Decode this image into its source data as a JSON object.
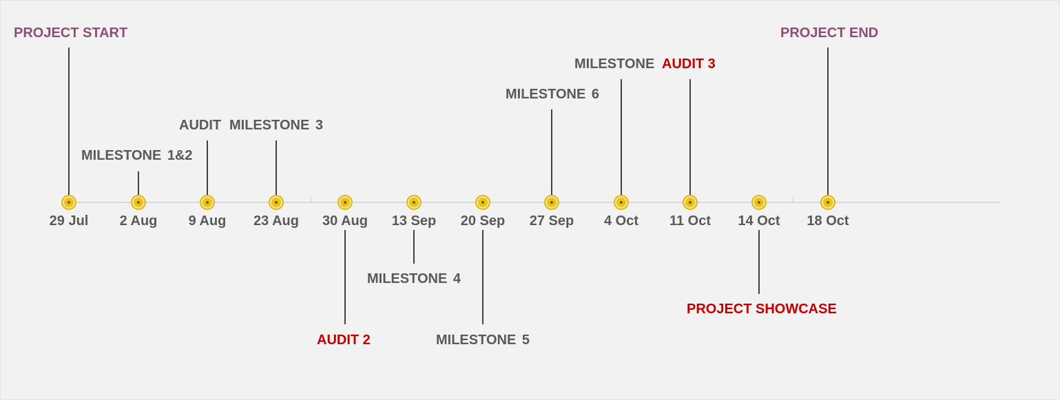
{
  "timeline": {
    "dates": [
      "29 Jul",
      "2 Aug",
      "9 Aug",
      "23 Aug",
      "30 Aug",
      "13 Sep",
      "20 Sep",
      "27 Sep",
      "4 Oct",
      "11 Oct",
      "14 Oct",
      "18 Oct"
    ],
    "labels": {
      "project_start": "PROJECT START",
      "milestone_1_2": "MILESTONE 1&2",
      "audit": "AUDIT",
      "milestone_3": "MILESTONE 3",
      "audit_2": "AUDIT 2",
      "milestone_4": "MILESTONE 4",
      "milestone_5": "MILESTONE 5",
      "milestone_6": "MILESTONE 6",
      "milestone": "MILESTONE",
      "audit_3": "AUDIT 3",
      "project_showcase": "PROJECT SHOWCASE",
      "project_end": "PROJECT END"
    },
    "colors": {
      "background": "#f2f2f2",
      "axis": "#d9d9d9",
      "marker": "#ecc21a",
      "leader": "#404040",
      "label_gray": "#595959",
      "label_purple": "#8e4e74",
      "label_red": "#c00000"
    }
  }
}
